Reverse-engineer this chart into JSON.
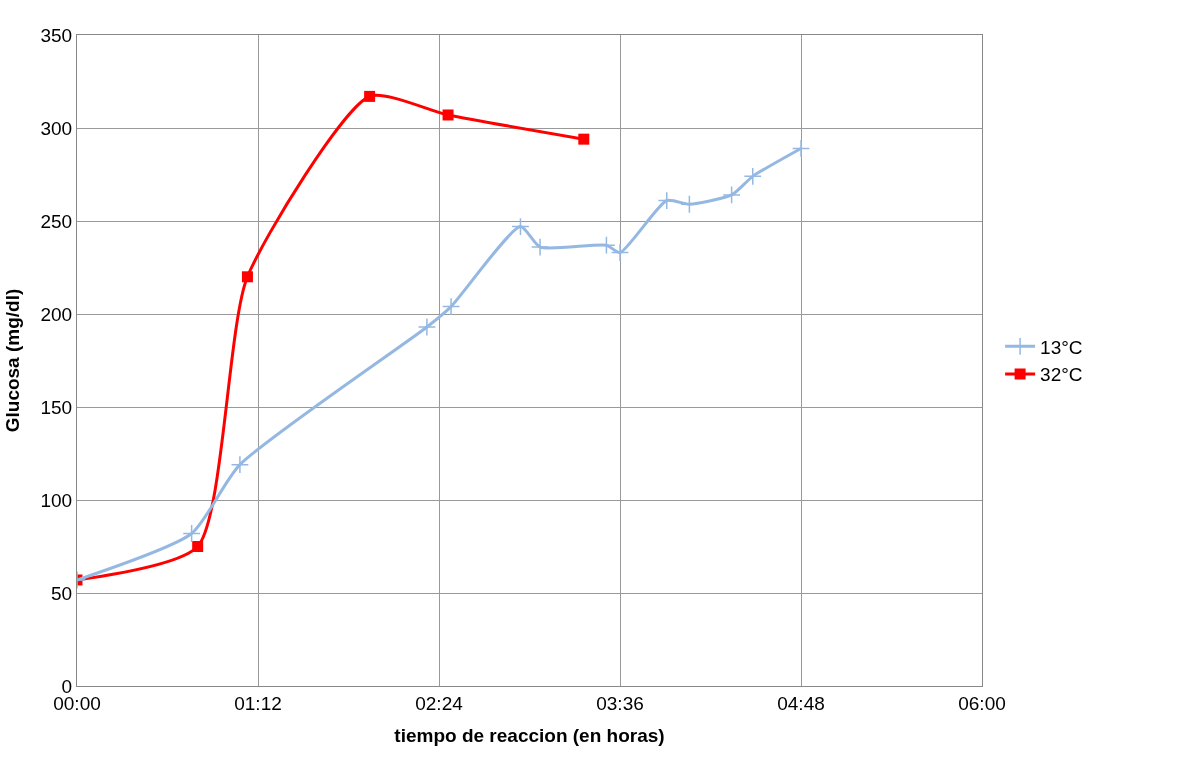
{
  "chart_data": {
    "type": "line",
    "xlabel": "tiempo de reaccion (en horas)",
    "ylabel": "Glucosa (mg/dl)",
    "xlim": [
      0,
      6
    ],
    "xticks": [
      {
        "value": 0,
        "label": "00:00"
      },
      {
        "value": 1.2,
        "label": "01:12"
      },
      {
        "value": 2.4,
        "label": "02:24"
      },
      {
        "value": 3.6,
        "label": "03:36"
      },
      {
        "value": 4.8,
        "label": "04:48"
      },
      {
        "value": 6,
        "label": "06:00"
      }
    ],
    "ylim": [
      0,
      350
    ],
    "yticks": [
      0,
      50,
      100,
      150,
      200,
      250,
      300,
      350
    ],
    "grid": true,
    "legend": "right",
    "series": [
      {
        "name": "13°C",
        "color": "#95b8e2",
        "marker": "cross",
        "x": [
          0,
          0.76,
          1.08,
          2.32,
          2.48,
          2.94,
          3.07,
          3.51,
          3.6,
          3.91,
          4.06,
          4.34,
          4.48,
          4.8
        ],
        "values": [
          57,
          82,
          119,
          193,
          204,
          247,
          236,
          237,
          233,
          261,
          259,
          264,
          274,
          289
        ]
      },
      {
        "name": "32°C",
        "color": "#ff0000",
        "marker": "square",
        "x": [
          0,
          0.8,
          1.13,
          1.94,
          2.46,
          3.36
        ],
        "values": [
          57,
          75,
          220,
          317,
          307,
          294
        ]
      }
    ]
  }
}
